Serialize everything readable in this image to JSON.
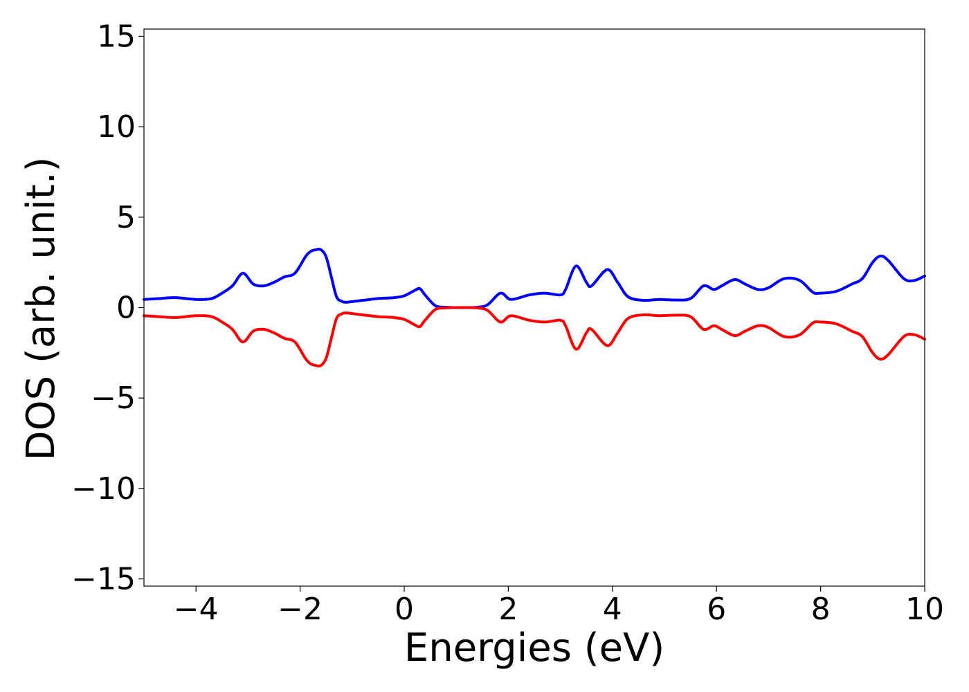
{
  "chart_data": {
    "type": "line",
    "title": "",
    "xlabel": "Energies (eV)",
    "ylabel": "DOS (arb. unit.)",
    "xlim": [
      -5,
      10
    ],
    "ylim": [
      -15.4,
      15.4
    ],
    "grid": false,
    "legend": "none",
    "x_ticks": [
      -4,
      -2,
      0,
      2,
      4,
      6,
      8,
      10
    ],
    "x_tick_labels": [
      "−4",
      "−2",
      "0",
      "2",
      "4",
      "6",
      "8",
      "10"
    ],
    "y_ticks": [
      -15,
      -10,
      -5,
      0,
      5,
      10,
      15
    ],
    "y_tick_labels": [
      "−15",
      "−10",
      "−5",
      "0",
      "5",
      "10",
      "15"
    ],
    "series": [
      {
        "color": "#0000ff",
        "x": [
          -5.0,
          -4.7,
          -4.4,
          -4.0,
          -3.7,
          -3.5,
          -3.3,
          -3.1,
          -2.9,
          -2.7,
          -2.5,
          -2.3,
          -2.1,
          -1.9,
          -1.8,
          -1.7,
          -1.6,
          -1.5,
          -1.4,
          -1.3,
          -1.2,
          -1.1,
          -0.8,
          -0.5,
          -0.2,
          0.0,
          0.2,
          0.3,
          0.4,
          0.6,
          0.8,
          1.0,
          1.2,
          1.4,
          1.6,
          1.85,
          2.05,
          2.4,
          2.7,
          3.0,
          3.1,
          3.3,
          3.5,
          3.6,
          3.9,
          4.1,
          4.3,
          4.6,
          4.9,
          5.2,
          5.5,
          5.75,
          5.95,
          6.1,
          6.35,
          6.55,
          6.8,
          7.0,
          7.3,
          7.6,
          7.85,
          8.0,
          8.3,
          8.6,
          8.8,
          9.0,
          9.15,
          9.3,
          9.6,
          9.8,
          10.0
        ],
        "y": [
          0.45,
          0.5,
          0.55,
          0.45,
          0.5,
          0.8,
          1.2,
          1.9,
          1.3,
          1.2,
          1.4,
          1.7,
          1.9,
          2.8,
          3.1,
          3.2,
          3.2,
          2.8,
          1.7,
          0.6,
          0.35,
          0.3,
          0.4,
          0.5,
          0.55,
          0.65,
          0.95,
          1.05,
          0.7,
          0.1,
          0.02,
          0.0,
          0.0,
          0.02,
          0.15,
          0.8,
          0.45,
          0.7,
          0.8,
          0.7,
          1.0,
          2.3,
          1.4,
          1.2,
          2.1,
          1.4,
          0.6,
          0.4,
          0.45,
          0.42,
          0.5,
          1.2,
          1.0,
          1.2,
          1.55,
          1.3,
          1.0,
          1.1,
          1.6,
          1.5,
          0.85,
          0.8,
          0.9,
          1.3,
          1.6,
          2.5,
          2.85,
          2.6,
          1.6,
          1.5,
          1.75
        ]
      },
      {
        "color": "#ff0000",
        "x": [
          -5.0,
          -4.7,
          -4.4,
          -4.0,
          -3.7,
          -3.5,
          -3.3,
          -3.1,
          -2.9,
          -2.7,
          -2.5,
          -2.3,
          -2.1,
          -1.9,
          -1.8,
          -1.7,
          -1.6,
          -1.5,
          -1.4,
          -1.3,
          -1.2,
          -1.1,
          -0.8,
          -0.5,
          -0.2,
          0.0,
          0.2,
          0.3,
          0.4,
          0.6,
          0.8,
          1.0,
          1.2,
          1.4,
          1.6,
          1.85,
          2.05,
          2.4,
          2.7,
          3.0,
          3.1,
          3.3,
          3.5,
          3.6,
          3.9,
          4.1,
          4.3,
          4.6,
          4.9,
          5.2,
          5.5,
          5.75,
          5.95,
          6.1,
          6.35,
          6.55,
          6.8,
          7.0,
          7.3,
          7.6,
          7.85,
          8.0,
          8.3,
          8.6,
          8.8,
          9.0,
          9.15,
          9.3,
          9.6,
          9.8,
          10.0
        ],
        "y": [
          -0.45,
          -0.5,
          -0.55,
          -0.45,
          -0.5,
          -0.8,
          -1.2,
          -1.9,
          -1.3,
          -1.2,
          -1.4,
          -1.7,
          -1.9,
          -2.8,
          -3.1,
          -3.2,
          -3.2,
          -2.8,
          -1.7,
          -0.6,
          -0.35,
          -0.3,
          -0.4,
          -0.5,
          -0.55,
          -0.65,
          -0.95,
          -1.05,
          -0.7,
          -0.1,
          -0.02,
          0.0,
          0.0,
          -0.02,
          -0.15,
          -0.8,
          -0.45,
          -0.7,
          -0.8,
          -0.7,
          -1.0,
          -2.3,
          -1.4,
          -1.2,
          -2.1,
          -1.4,
          -0.6,
          -0.4,
          -0.45,
          -0.42,
          -0.5,
          -1.2,
          -1.0,
          -1.2,
          -1.55,
          -1.3,
          -1.0,
          -1.1,
          -1.6,
          -1.5,
          -0.85,
          -0.8,
          -0.9,
          -1.3,
          -1.6,
          -2.5,
          -2.85,
          -2.6,
          -1.6,
          -1.5,
          -1.75
        ]
      }
    ]
  }
}
